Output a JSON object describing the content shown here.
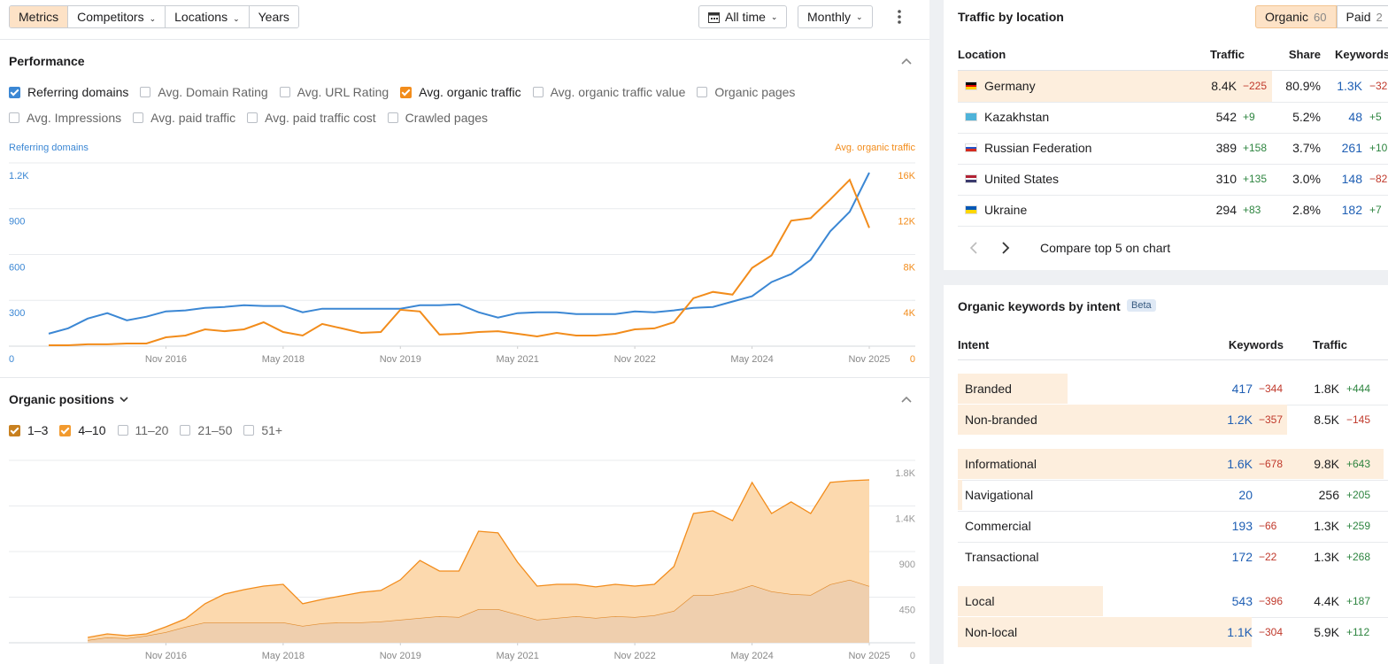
{
  "toolbar": {
    "tabs": [
      "Metrics",
      "Competitors",
      "Locations",
      "Years"
    ],
    "active_tab": 0,
    "period": "All time",
    "interval": "Monthly"
  },
  "performance": {
    "title": "Performance",
    "metrics": [
      {
        "label": "Referring domains",
        "checked": true,
        "color": "#3b87d4"
      },
      {
        "label": "Avg. Domain Rating",
        "checked": false
      },
      {
        "label": "Avg. URL Rating",
        "checked": false
      },
      {
        "label": "Avg. organic traffic",
        "checked": true,
        "color": "#f28c1b"
      },
      {
        "label": "Avg. organic traffic value",
        "checked": false
      },
      {
        "label": "Organic pages",
        "checked": false
      },
      {
        "label": "Avg. Impressions",
        "checked": false
      },
      {
        "label": "Avg. paid traffic",
        "checked": false
      },
      {
        "label": "Avg. paid traffic cost",
        "checked": false
      },
      {
        "label": "Crawled pages",
        "checked": false
      }
    ]
  },
  "organic_positions": {
    "title": "Organic positions",
    "filters": [
      {
        "label": "1–3",
        "checked": true,
        "color": "#c8801f"
      },
      {
        "label": "4–10",
        "checked": true,
        "color": "#f29a2e"
      },
      {
        "label": "11–20",
        "checked": false
      },
      {
        "label": "21–50",
        "checked": false
      },
      {
        "label": "51+",
        "checked": false
      }
    ]
  },
  "chart_data": [
    {
      "type": "line",
      "y_label": "Referring domains",
      "y2_label": "Avg. organic traffic",
      "grid": true,
      "x": [
        "May 2015",
        "Aug 2015",
        "Nov 2015",
        "Feb 2016",
        "May 2016",
        "Aug 2016",
        "Nov 2016",
        "Feb 2017",
        "May 2017",
        "Aug 2017",
        "Nov 2017",
        "Feb 2018",
        "May 2018",
        "Aug 2018",
        "Nov 2018",
        "Feb 2019",
        "May 2019",
        "Aug 2019",
        "Nov 2019",
        "Feb 2020",
        "May 2020",
        "Aug 2020",
        "Nov 2020",
        "Feb 2021",
        "May 2021",
        "Aug 2021",
        "Nov 2021",
        "Feb 2022",
        "May 2022",
        "Aug 2022",
        "Nov 2022",
        "Feb 2023",
        "May 2023",
        "Aug 2023",
        "Nov 2023",
        "Feb 2024",
        "May 2024",
        "Aug 2024",
        "Nov 2024",
        "Feb 2025",
        "May 2025",
        "Aug 2025",
        "Nov 2025"
      ],
      "xticks": [
        "Nov 2016",
        "May 2018",
        "Nov 2019",
        "May 2021",
        "Nov 2022",
        "May 2024",
        "Nov 2025"
      ],
      "ylim": [
        0,
        1200
      ],
      "yticks": [
        0,
        300,
        600,
        900,
        {
          "value": 1200,
          "label": "1.2K"
        }
      ],
      "y2lim": [
        0,
        16000
      ],
      "y2ticks": [
        0,
        {
          "value": 4000,
          "label": "4K"
        },
        {
          "value": 8000,
          "label": "8K"
        },
        {
          "value": 12000,
          "label": "12K"
        },
        {
          "value": 16000,
          "label": "16K"
        }
      ],
      "series": [
        {
          "color": "#3b87d4",
          "values": [
            82,
            117,
            181,
            216,
            169,
            193,
            228,
            234,
            251,
            257,
            268,
            263,
            263,
            222,
            245,
            245,
            245,
            245,
            245,
            268,
            268,
            274,
            222,
            187,
            216,
            222,
            222,
            210,
            210,
            210,
            228,
            222,
            234,
            251,
            257,
            292,
            327,
            420,
            472,
            565,
            752,
            880,
            1136
          ]
        },
        {
          "color": "#f28c1b",
          "axis": "y2",
          "values": [
            80,
            80,
            160,
            160,
            230,
            230,
            770,
            930,
            1470,
            1310,
            1470,
            2090,
            1240,
            930,
            1940,
            1550,
            1160,
            1240,
            3180,
            3030,
            1010,
            1080,
            1240,
            1310,
            1080,
            850,
            1160,
            930,
            930,
            1080,
            1470,
            1550,
            2090,
            4190,
            4740,
            4500,
            6830,
            7920,
            10950,
            11180,
            12810,
            14520,
            10330
          ]
        }
      ]
    },
    {
      "type": "stacked_area",
      "yaxis_position": "right",
      "grid": true,
      "x": [
        "May 2015",
        "Aug 2015",
        "Nov 2015",
        "Feb 2016",
        "May 2016",
        "Aug 2016",
        "Nov 2016",
        "Feb 2017",
        "May 2017",
        "Aug 2017",
        "Nov 2017",
        "Feb 2018",
        "May 2018",
        "Aug 2018",
        "Nov 2018",
        "Feb 2019",
        "May 2019",
        "Aug 2019",
        "Nov 2019",
        "Feb 2020",
        "May 2020",
        "Aug 2020",
        "Nov 2020",
        "Feb 2021",
        "May 2021",
        "Aug 2021",
        "Nov 2021",
        "Feb 2022",
        "May 2022",
        "Aug 2022",
        "Nov 2022",
        "Feb 2023",
        "May 2023",
        "Aug 2023",
        "Nov 2023",
        "Feb 2024",
        "May 2024",
        "Aug 2024",
        "Nov 2024",
        "Feb 2025",
        "May 2025",
        "Aug 2025",
        "Nov 2025"
      ],
      "xticks": [
        "Nov 2016",
        "May 2018",
        "Nov 2019",
        "May 2021",
        "Nov 2022",
        "May 2024",
        "Nov 2025"
      ],
      "ylim": [
        0,
        1800
      ],
      "yticks": [
        0,
        450,
        900,
        {
          "value": 1350,
          "label": "1.4K"
        },
        {
          "value": 1800,
          "label": "1.8K"
        }
      ],
      "series": [
        {
          "color": "#e08a2b",
          "fill": "#efcfae",
          "values": [
            null,
            null,
            26,
            52,
            44,
            70,
            105,
            157,
            201,
            201,
            201,
            201,
            201,
            166,
            192,
            201,
            201,
            210,
            227,
            245,
            262,
            253,
            332,
            332,
            280,
            227,
            245,
            262,
            245,
            262,
            253,
            271,
            315,
            472,
            472,
            507,
            568,
            507,
            481,
            472,
            577,
            621,
            559
          ]
        },
        {
          "color": "#f28c1b",
          "fill": "#fcd9ae",
          "values": [
            null,
            null,
            26,
            35,
            26,
            17,
            52,
            79,
            184,
            280,
            323,
            358,
            376,
            219,
            236,
            262,
            297,
            306,
            394,
            568,
            446,
            455,
            769,
            752,
            515,
            332,
            332,
            315,
            306,
            315,
            306,
            306,
            437,
            804,
            830,
            699,
            1014,
            769,
            909,
            804,
            1005,
            978,
            1049
          ]
        }
      ]
    }
  ],
  "traffic_by_location": {
    "title": "Traffic by location",
    "modes": [
      {
        "label": "Organic",
        "count": "60"
      },
      {
        "label": "Paid",
        "count": "2"
      }
    ],
    "columns": [
      "Location",
      "Traffic",
      "Share",
      "Keywords"
    ],
    "rows": [
      {
        "location": "Germany",
        "traffic": "8.4K",
        "traffic_change": "−225",
        "share": "80.9%",
        "keywords": "1.3K",
        "keywords_change": "−32"
      },
      {
        "location": "Kazakhstan",
        "traffic": "542",
        "traffic_change": "+9",
        "share": "5.2%",
        "keywords": "48",
        "keywords_change": "+5"
      },
      {
        "location": "Russian Federation",
        "traffic": "389",
        "traffic_change": "+158",
        "share": "3.7%",
        "keywords": "261",
        "keywords_change": "+10"
      },
      {
        "location": "United States",
        "traffic": "310",
        "traffic_change": "+135",
        "share": "3.0%",
        "keywords": "148",
        "keywords_change": "−82"
      },
      {
        "location": "Ukraine",
        "traffic": "294",
        "traffic_change": "+83",
        "share": "2.8%",
        "keywords": "182",
        "keywords_change": "+7"
      }
    ],
    "footer": "Compare top 5 on chart"
  },
  "keywords_by_intent": {
    "title": "Organic keywords by intent",
    "badge": "Beta",
    "columns": [
      "Intent",
      "Keywords",
      "Traffic"
    ],
    "groups": [
      [
        {
          "intent": "Branded",
          "keywords": "417",
          "keywords_change": "−344",
          "traffic": "1.8K",
          "traffic_change": "+444",
          "share": 25
        },
        {
          "intent": "Non-branded",
          "keywords": "1.2K",
          "keywords_change": "−357",
          "traffic": "8.5K",
          "traffic_change": "−145",
          "share": 75
        }
      ],
      [
        {
          "intent": "Informational",
          "keywords": "1.6K",
          "keywords_change": "−678",
          "traffic": "9.8K",
          "traffic_change": "+643",
          "share": 97
        },
        {
          "intent": "Navigational",
          "keywords": "20",
          "traffic": "256",
          "traffic_change": "+205",
          "share": 1
        },
        {
          "intent": "Commercial",
          "keywords": "193",
          "keywords_change": "−66",
          "traffic": "1.3K",
          "traffic_change": "+259",
          "share": 0
        },
        {
          "intent": "Transactional",
          "keywords": "172",
          "keywords_change": "−22",
          "traffic": "1.3K",
          "traffic_change": "+268",
          "share": 0
        }
      ],
      [
        {
          "intent": "Local",
          "keywords": "543",
          "keywords_change": "−396",
          "traffic": "4.4K",
          "traffic_change": "+187",
          "share": 33
        },
        {
          "intent": "Non-local",
          "keywords": "1.1K",
          "keywords_change": "−304",
          "traffic": "5.9K",
          "traffic_change": "+112",
          "share": 67
        }
      ]
    ]
  }
}
